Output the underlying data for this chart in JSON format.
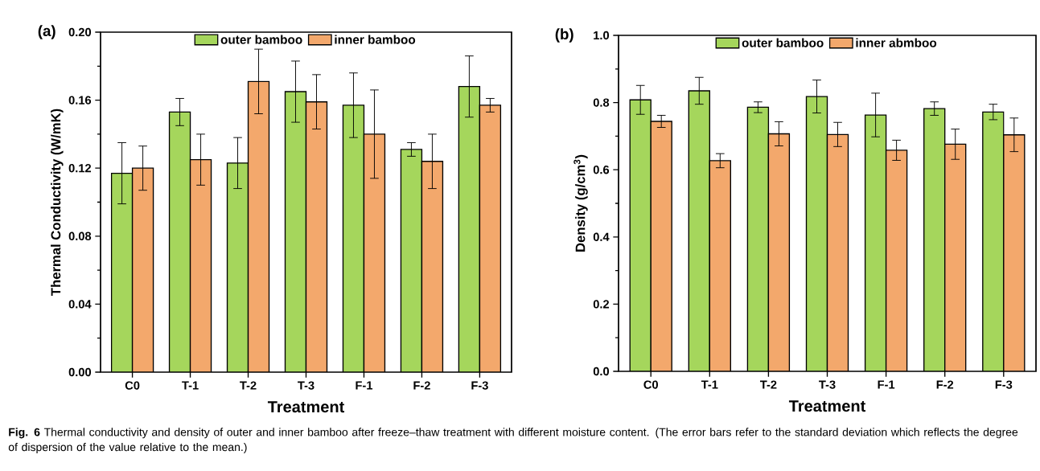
{
  "chart_data": [
    {
      "type": "bar",
      "title": "(a)",
      "xlabel": "Treatment",
      "ylabel": "Thermal Conductivity (W/mK)",
      "categories": [
        "C0",
        "T-1",
        "T-2",
        "T-3",
        "F-1",
        "F-2",
        "F-3"
      ],
      "series": [
        {
          "name": "outer bamboo",
          "color": "#a5d65c",
          "values": [
            0.117,
            0.153,
            0.123,
            0.165,
            0.157,
            0.131,
            0.168
          ],
          "errors": [
            0.018,
            0.008,
            0.015,
            0.018,
            0.019,
            0.004,
            0.018
          ]
        },
        {
          "name": "inner bamboo",
          "color": "#f3a86c",
          "values": [
            0.12,
            0.125,
            0.171,
            0.159,
            0.14,
            0.124,
            0.157
          ],
          "errors": [
            0.013,
            0.015,
            0.019,
            0.016,
            0.026,
            0.016,
            0.004
          ]
        }
      ],
      "ylim": [
        0,
        0.2
      ],
      "yticks": [
        {
          "value": 0,
          "label": "0.00"
        },
        {
          "value": 0.04,
          "label": "0.04"
        },
        {
          "value": 0.08,
          "label": "0.08"
        },
        {
          "value": 0.12,
          "label": "0.12"
        },
        {
          "value": 0.16,
          "label": "0.16"
        },
        {
          "value": 0.2,
          "label": "0.20"
        }
      ],
      "legend": "top",
      "annotations": [
        "**Fig. 6** Thermal conductivity and density of outer and inner bamboo after freeze–thaw treatment with different moisture content. (The error bars refer to the standard deviation which reflects the degree of dispersion of the value relative to the mean.)"
      ]
    },
    {
      "type": "bar",
      "title": "(b)",
      "xlabel": "Treatment",
      "ylabel": "Density (g/cm$^{3}$)",
      "categories": [
        "C0",
        "T-1",
        "T-2",
        "T-3",
        "F-1",
        "F-2",
        "F-3"
      ],
      "series": [
        {
          "name": "outer bamboo",
          "color": "#a5d65c",
          "values": [
            0.808,
            0.835,
            0.786,
            0.818,
            0.763,
            0.782,
            0.772
          ],
          "errors": [
            0.043,
            0.04,
            0.016,
            0.049,
            0.065,
            0.02,
            0.023
          ]
        },
        {
          "name": "inner abmboo",
          "color": "#f3a86c",
          "values": [
            0.744,
            0.627,
            0.707,
            0.705,
            0.658,
            0.676,
            0.704
          ],
          "errors": [
            0.018,
            0.021,
            0.036,
            0.036,
            0.03,
            0.045,
            0.05
          ]
        }
      ],
      "ylim": [
        0,
        1.0
      ],
      "yticks": [
        {
          "value": 0,
          "label": "0.0"
        },
        {
          "value": 0.2,
          "label": "0.2"
        },
        {
          "value": 0.4,
          "label": "0.4"
        },
        {
          "value": 0.6,
          "label": "0.6"
        },
        {
          "value": 0.8,
          "label": "0.8"
        },
        {
          "value": 1.0,
          "label": "1.0"
        }
      ],
      "legend": "top"
    }
  ]
}
